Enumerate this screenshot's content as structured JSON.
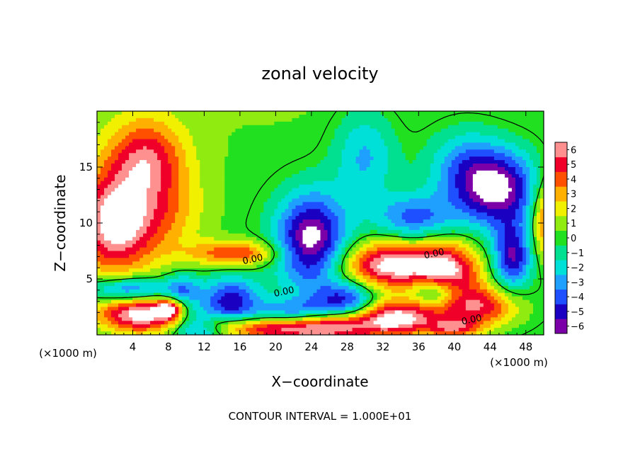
{
  "chart_data": {
    "type": "heatmap",
    "title": "zonal velocity",
    "xlabel": "X−coordinate",
    "ylabel": "Z−coordinate",
    "x_unit_left": "(×1000 m)",
    "x_unit_right": "(×1000 m)",
    "footer": "CONTOUR INTERVAL = 1.000E+01",
    "xlim": [
      0,
      50
    ],
    "ylim": [
      0,
      20
    ],
    "x_ticks": [
      4,
      8,
      12,
      16,
      20,
      24,
      28,
      32,
      36,
      40,
      44,
      48
    ],
    "y_ticks": [
      5,
      10,
      15
    ],
    "colorbar": {
      "levels": [
        -6,
        -5,
        -4,
        -3,
        -2,
        -1,
        0,
        1,
        2,
        3,
        4,
        5,
        6
      ],
      "colors": [
        "#7b00a8",
        "#1a00c0",
        "#1f50ff",
        "#1fa0ff",
        "#00e0d8",
        "#00e090",
        "#20e020",
        "#90ec10",
        "#f0f000",
        "#ffb000",
        "#ff5000",
        "#f00028",
        "#ff9090"
      ]
    },
    "contour_labels": [
      {
        "text": "0.00",
        "x": 17.5,
        "y": 6.5
      },
      {
        "text": "0.00",
        "x": 21.0,
        "y": 3.6
      },
      {
        "text": "0.00",
        "x": 37.8,
        "y": 7.0
      },
      {
        "text": "0.00",
        "x": 42.0,
        "y": 1.1
      }
    ],
    "features": [
      {
        "sign": "pos",
        "value": 7.0,
        "x": 2.0,
        "y": 10.0,
        "sx": 3.2,
        "sy": 3.3
      },
      {
        "sign": "pos",
        "value": 4.5,
        "x": 5.5,
        "y": 16.0,
        "sx": 3.0,
        "sy": 2.5
      },
      {
        "sign": "pos",
        "value": 2.5,
        "x": 8.0,
        "y": 11.0,
        "sx": 3.0,
        "sy": 3.0
      },
      {
        "sign": "pos",
        "value": 7.0,
        "x": 33.0,
        "y": 6.2,
        "sx": 4.0,
        "sy": 1.5
      },
      {
        "sign": "pos",
        "value": 5.5,
        "x": 39.5,
        "y": 5.5,
        "sx": 2.5,
        "sy": 2.0
      },
      {
        "sign": "pos",
        "value": 4.5,
        "x": 15.5,
        "y": 7.3,
        "sx": 3.5,
        "sy": 0.8
      },
      {
        "sign": "pos",
        "value": 7.0,
        "x": 5.0,
        "y": 1.8,
        "sx": 3.5,
        "sy": 1.2
      },
      {
        "sign": "pos",
        "value": 5.0,
        "x": 8.0,
        "y": 2.3,
        "sx": 1.0,
        "sy": 0.6
      },
      {
        "sign": "pos",
        "value": 7.0,
        "x": 25.0,
        "y": 0.7,
        "sx": 4.0,
        "sy": 1.0
      },
      {
        "sign": "pos",
        "value": 7.0,
        "x": 33.5,
        "y": 1.5,
        "sx": 3.5,
        "sy": 1.2
      },
      {
        "sign": "pos",
        "value": 5.0,
        "x": 43.0,
        "y": 2.5,
        "sx": 3.0,
        "sy": 1.3
      },
      {
        "sign": "pos",
        "value": 5.0,
        "x": 50.5,
        "y": 10.5,
        "sx": 1.3,
        "sy": 2.5
      },
      {
        "sign": "pos",
        "value": 4.0,
        "x": 18.0,
        "y": 0.5,
        "sx": 3.0,
        "sy": 0.7
      },
      {
        "sign": "pos",
        "value": 3.5,
        "x": 13.0,
        "y": 1.0,
        "sx": 2.0,
        "sy": 0.8
      },
      {
        "sign": "pos",
        "value": 4.0,
        "x": 40.0,
        "y": 0.6,
        "sx": 2.0,
        "sy": 0.6
      },
      {
        "sign": "neg",
        "value": 7.0,
        "x": 24.0,
        "y": 8.5,
        "sx": 2.8,
        "sy": 3.0
      },
      {
        "sign": "neg",
        "value": 6.5,
        "x": 45.0,
        "y": 13.0,
        "sx": 3.3,
        "sy": 2.5
      },
      {
        "sign": "neg",
        "value": 5.0,
        "x": 15.0,
        "y": 3.0,
        "sx": 2.2,
        "sy": 1.5
      },
      {
        "sign": "neg",
        "value": 5.5,
        "x": 46.5,
        "y": 7.0,
        "sx": 1.5,
        "sy": 2.0
      },
      {
        "sign": "neg",
        "value": 5.0,
        "x": 3.5,
        "y": 4.0,
        "sx": 3.0,
        "sy": 0.8
      },
      {
        "sign": "neg",
        "value": 5.0,
        "x": 11.5,
        "y": 0.8,
        "sx": 2.0,
        "sy": 1.2
      },
      {
        "sign": "neg",
        "value": 5.0,
        "x": 28.0,
        "y": 3.0,
        "sx": 2.5,
        "sy": 1.2
      },
      {
        "sign": "neg",
        "value": 4.0,
        "x": 35.5,
        "y": 10.5,
        "sx": 3.0,
        "sy": 1.5
      },
      {
        "sign": "neg",
        "value": 4.0,
        "x": 22.0,
        "y": 2.0,
        "sx": 3.0,
        "sy": 0.8
      },
      {
        "sign": "neg",
        "value": 4.0,
        "x": 38.0,
        "y": 3.8,
        "sx": 2.0,
        "sy": 0.9
      },
      {
        "sign": "neg",
        "value": 3.5,
        "x": 9.5,
        "y": 4.0,
        "sx": 1.5,
        "sy": 1.0
      },
      {
        "sign": "neg",
        "value": 3.0,
        "x": 30.0,
        "y": 16.0,
        "sx": 2.5,
        "sy": 3.0
      },
      {
        "sign": "neg",
        "value": 3.0,
        "x": 41.0,
        "y": 15.0,
        "sx": 3.0,
        "sy": 2.5
      }
    ]
  }
}
